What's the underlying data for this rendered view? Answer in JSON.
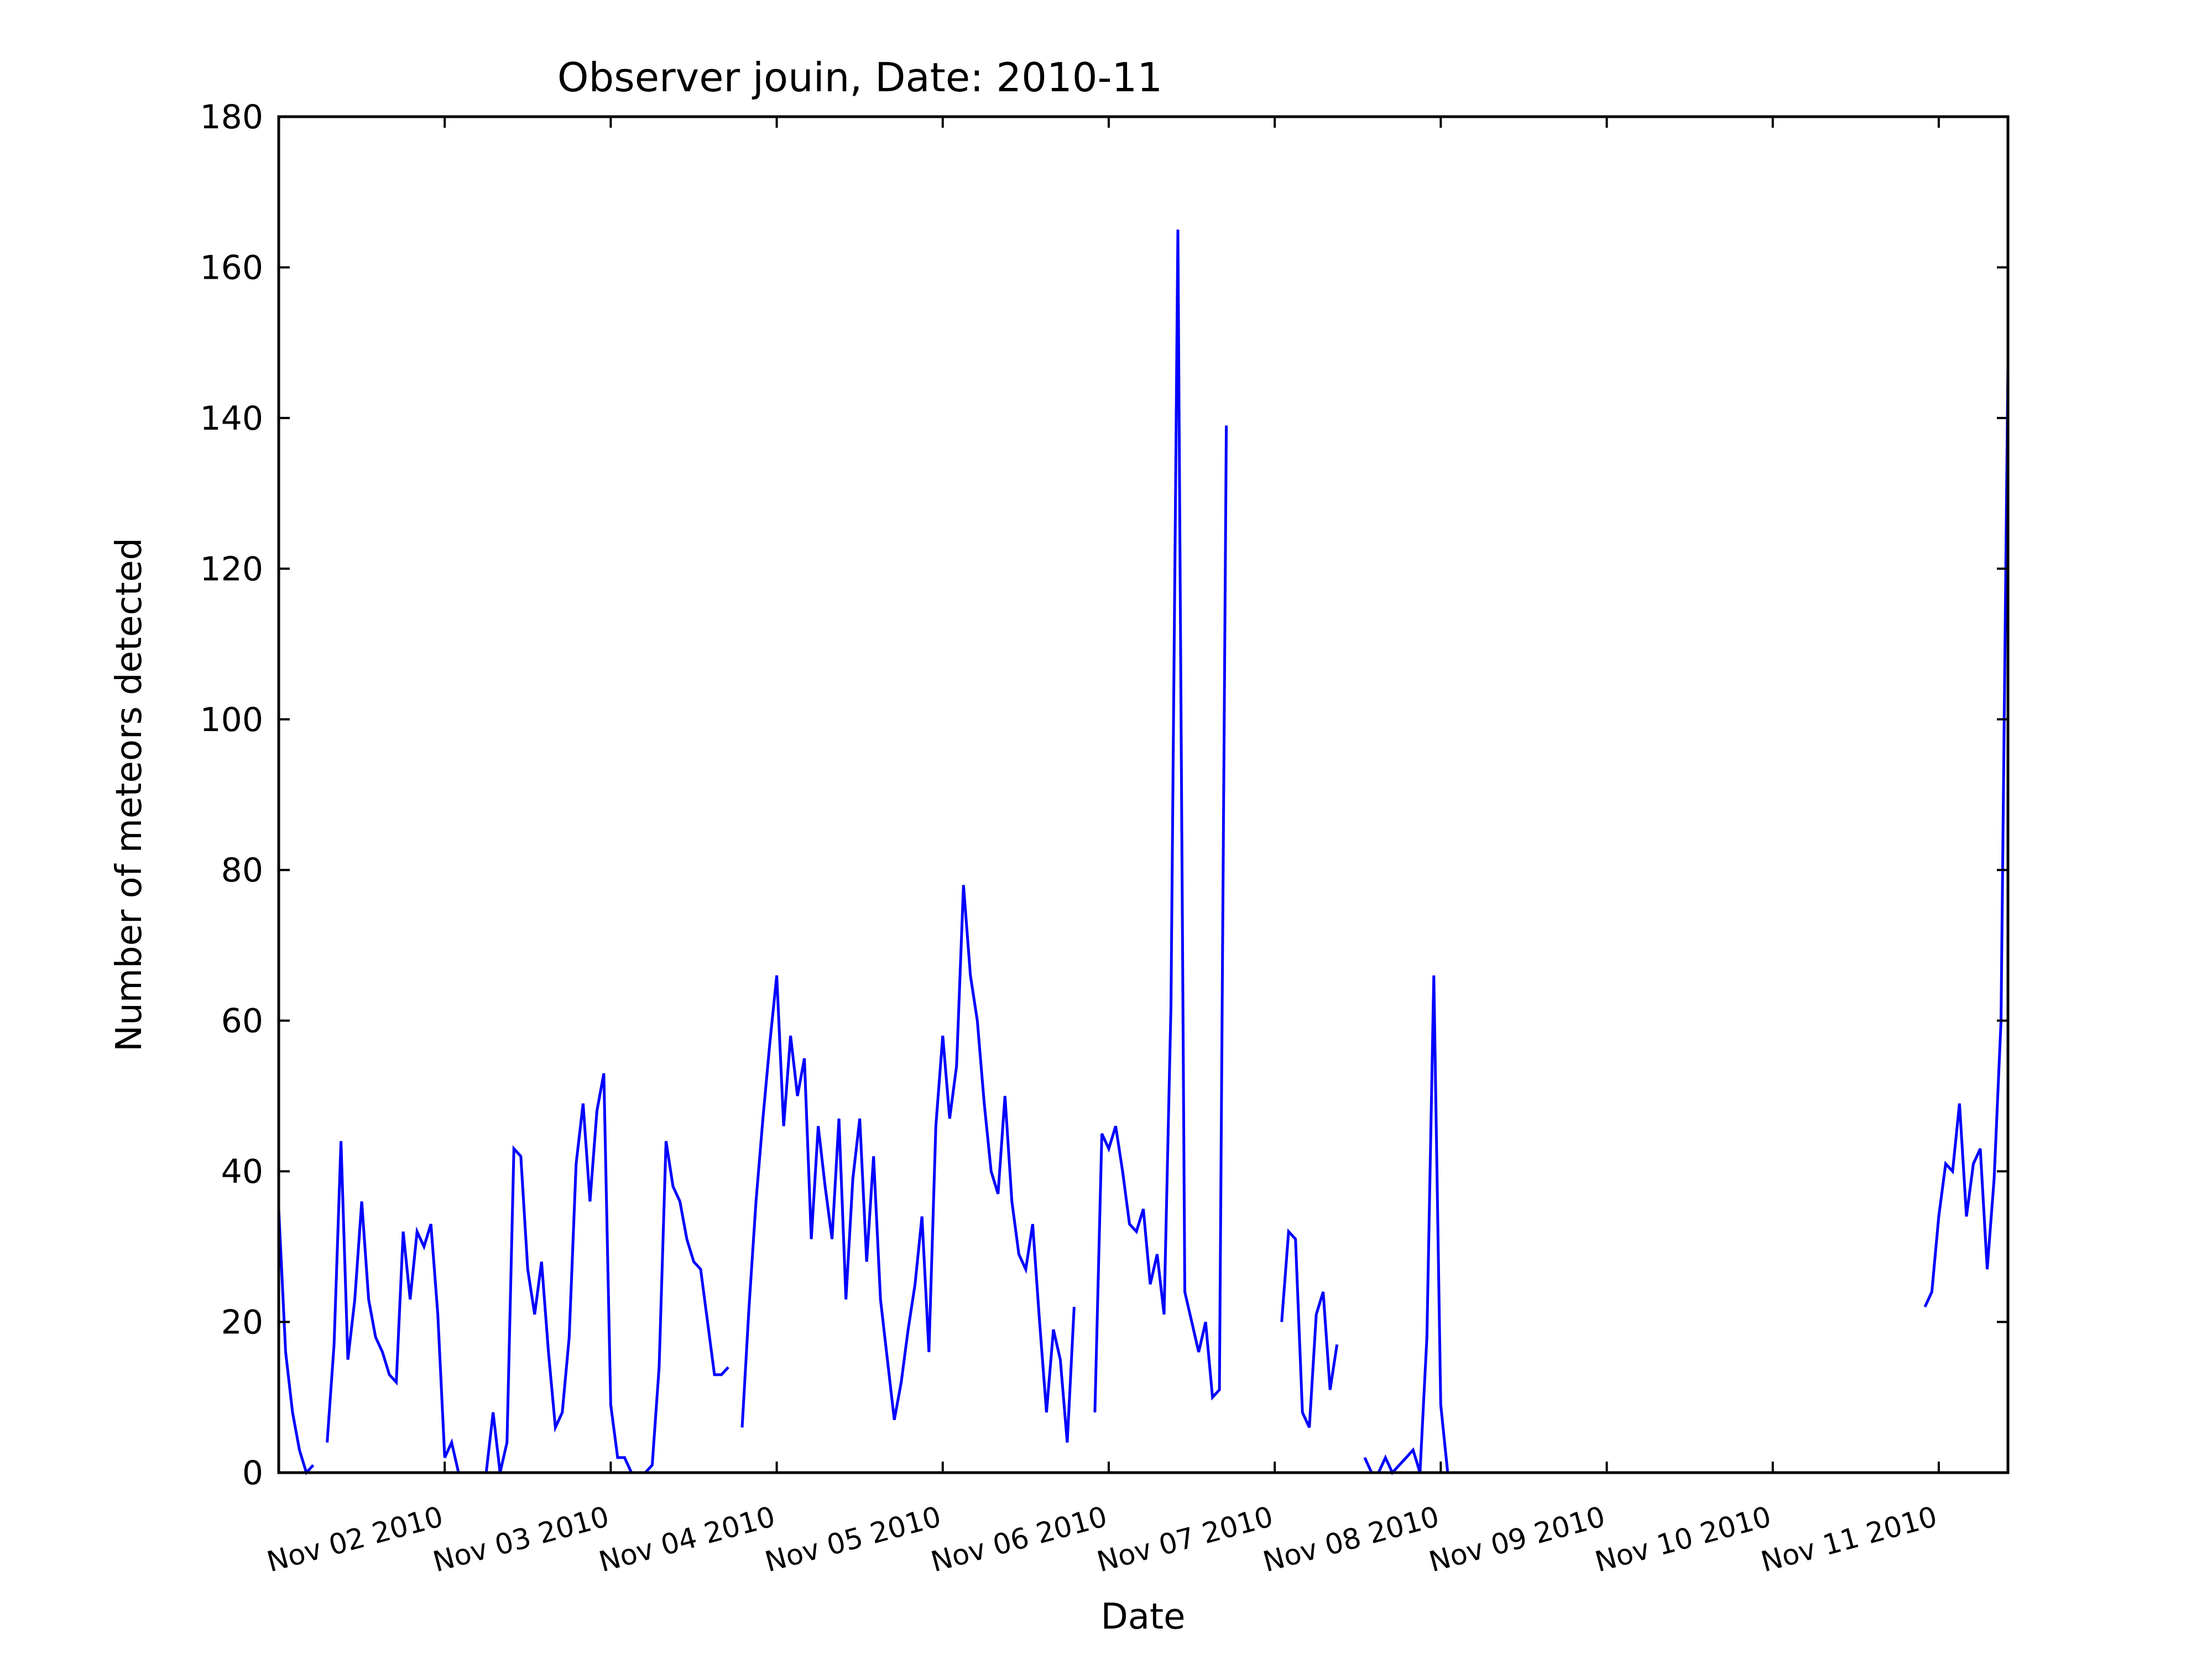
{
  "chart_data": {
    "type": "line",
    "title": "Observer jouin, Date: 2010-11",
    "xlabel": "Date",
    "ylabel": "Number of meteors detected",
    "xlim": [
      "2010-11-01 00:00",
      "2010-11-11 10:00"
    ],
    "ylim": [
      0,
      180
    ],
    "x_tick_labels": [
      "Nov 02 2010",
      "Nov 03 2010",
      "Nov 04 2010",
      "Nov 05 2010",
      "Nov 06 2010",
      "Nov 07 2010",
      "Nov 08 2010",
      "Nov 09 2010",
      "Nov 10 2010",
      "Nov 11 2010"
    ],
    "y_tick_labels": [
      "0",
      "20",
      "40",
      "60",
      "80",
      "100",
      "120",
      "140",
      "160",
      "180"
    ],
    "grid": false,
    "legend": null,
    "series": [
      {
        "color": "#0000ff",
        "segments": [
          [
            [
              "2010-11-01 00:00",
              35
            ],
            [
              "2010-11-01 01:00",
              16
            ],
            [
              "2010-11-01 02:00",
              8
            ],
            [
              "2010-11-01 03:00",
              3
            ],
            [
              "2010-11-01 04:00",
              0
            ],
            [
              "2010-11-01 05:00",
              1
            ]
          ],
          [
            [
              "2010-11-01 07:00",
              4
            ],
            [
              "2010-11-01 08:00",
              17
            ],
            [
              "2010-11-01 09:00",
              44
            ],
            [
              "2010-11-01 10:00",
              15
            ],
            [
              "2010-11-01 11:00",
              23
            ],
            [
              "2010-11-01 12:00",
              36
            ],
            [
              "2010-11-01 13:00",
              23
            ],
            [
              "2010-11-01 14:00",
              18
            ],
            [
              "2010-11-01 15:00",
              16
            ],
            [
              "2010-11-01 16:00",
              13
            ],
            [
              "2010-11-01 17:00",
              12
            ],
            [
              "2010-11-01 18:00",
              32
            ],
            [
              "2010-11-01 19:00",
              23
            ],
            [
              "2010-11-01 20:00",
              32
            ],
            [
              "2010-11-01 21:00",
              30
            ],
            [
              "2010-11-01 22:00",
              33
            ],
            [
              "2010-11-01 23:00",
              21
            ],
            [
              "2010-11-02 00:00",
              2
            ],
            [
              "2010-11-02 01:00",
              4
            ],
            [
              "2010-11-02 02:00",
              0
            ],
            [
              "2010-11-02 03:00",
              0
            ],
            [
              "2010-11-02 04:00",
              0
            ],
            [
              "2010-11-02 05:00",
              0
            ],
            [
              "2010-11-02 06:00",
              0
            ],
            [
              "2010-11-02 07:00",
              8
            ],
            [
              "2010-11-02 08:00",
              0
            ],
            [
              "2010-11-02 09:00",
              4
            ],
            [
              "2010-11-02 10:00",
              43
            ],
            [
              "2010-11-02 11:00",
              42
            ],
            [
              "2010-11-02 12:00",
              27
            ],
            [
              "2010-11-02 13:00",
              21
            ],
            [
              "2010-11-02 14:00",
              28
            ],
            [
              "2010-11-02 15:00",
              16
            ],
            [
              "2010-11-02 16:00",
              6
            ],
            [
              "2010-11-02 17:00",
              8
            ],
            [
              "2010-11-02 18:00",
              18
            ],
            [
              "2010-11-02 19:00",
              41
            ],
            [
              "2010-11-02 20:00",
              49
            ],
            [
              "2010-11-02 21:00",
              36
            ],
            [
              "2010-11-02 22:00",
              48
            ],
            [
              "2010-11-02 23:00",
              53
            ],
            [
              "2010-11-03 00:00",
              9
            ],
            [
              "2010-11-03 01:00",
              2
            ],
            [
              "2010-11-03 02:00",
              2
            ],
            [
              "2010-11-03 03:00",
              0
            ],
            [
              "2010-11-03 04:00",
              0
            ],
            [
              "2010-11-03 05:00",
              0
            ],
            [
              "2010-11-03 06:00",
              1
            ],
            [
              "2010-11-03 07:00",
              14
            ],
            [
              "2010-11-03 08:00",
              44
            ],
            [
              "2010-11-03 09:00",
              38
            ],
            [
              "2010-11-03 10:00",
              36
            ],
            [
              "2010-11-03 11:00",
              31
            ],
            [
              "2010-11-03 12:00",
              28
            ],
            [
              "2010-11-03 13:00",
              27
            ],
            [
              "2010-11-03 14:00",
              20
            ],
            [
              "2010-11-03 15:00",
              13
            ],
            [
              "2010-11-03 16:00",
              13
            ],
            [
              "2010-11-03 17:00",
              14
            ]
          ],
          [
            [
              "2010-11-03 19:00",
              6
            ],
            [
              "2010-11-03 20:00",
              22
            ],
            [
              "2010-11-03 21:00",
              36
            ],
            [
              "2010-11-03 22:00",
              47
            ],
            [
              "2010-11-03 23:00",
              57
            ],
            [
              "2010-11-04 00:00",
              66
            ],
            [
              "2010-11-04 01:00",
              46
            ],
            [
              "2010-11-04 02:00",
              58
            ],
            [
              "2010-11-04 03:00",
              50
            ],
            [
              "2010-11-04 04:00",
              55
            ],
            [
              "2010-11-04 05:00",
              31
            ],
            [
              "2010-11-04 06:00",
              46
            ],
            [
              "2010-11-04 07:00",
              38
            ],
            [
              "2010-11-04 08:00",
              31
            ],
            [
              "2010-11-04 09:00",
              47
            ],
            [
              "2010-11-04 10:00",
              23
            ],
            [
              "2010-11-04 11:00",
              39
            ],
            [
              "2010-11-04 12:00",
              47
            ],
            [
              "2010-11-04 13:00",
              28
            ],
            [
              "2010-11-04 14:00",
              42
            ],
            [
              "2010-11-04 15:00",
              23
            ],
            [
              "2010-11-04 16:00",
              15
            ],
            [
              "2010-11-04 17:00",
              7
            ],
            [
              "2010-11-04 18:00",
              12
            ],
            [
              "2010-11-04 19:00",
              19
            ],
            [
              "2010-11-04 20:00",
              25
            ],
            [
              "2010-11-04 21:00",
              34
            ],
            [
              "2010-11-04 22:00",
              16
            ],
            [
              "2010-11-04 23:00",
              46
            ],
            [
              "2010-11-05 00:00",
              58
            ],
            [
              "2010-11-05 01:00",
              47
            ],
            [
              "2010-11-05 02:00",
              54
            ],
            [
              "2010-11-05 03:00",
              78
            ],
            [
              "2010-11-05 04:00",
              66
            ],
            [
              "2010-11-05 05:00",
              60
            ],
            [
              "2010-11-05 06:00",
              49
            ],
            [
              "2010-11-05 07:00",
              40
            ],
            [
              "2010-11-05 08:00",
              37
            ],
            [
              "2010-11-05 09:00",
              50
            ],
            [
              "2010-11-05 10:00",
              36
            ],
            [
              "2010-11-05 11:00",
              29
            ],
            [
              "2010-11-05 12:00",
              27
            ],
            [
              "2010-11-05 13:00",
              33
            ],
            [
              "2010-11-05 14:00",
              20
            ],
            [
              "2010-11-05 15:00",
              8
            ],
            [
              "2010-11-05 16:00",
              19
            ],
            [
              "2010-11-05 17:00",
              15
            ],
            [
              "2010-11-05 18:00",
              4
            ],
            [
              "2010-11-05 19:00",
              22
            ]
          ],
          [
            [
              "2010-11-05 22:00",
              8
            ],
            [
              "2010-11-05 23:00",
              45
            ],
            [
              "2010-11-06 00:00",
              43
            ],
            [
              "2010-11-06 01:00",
              46
            ],
            [
              "2010-11-06 02:00",
              40
            ],
            [
              "2010-11-06 03:00",
              33
            ],
            [
              "2010-11-06 04:00",
              32
            ],
            [
              "2010-11-06 05:00",
              35
            ],
            [
              "2010-11-06 06:00",
              25
            ],
            [
              "2010-11-06 07:00",
              29
            ],
            [
              "2010-11-06 08:00",
              21
            ],
            [
              "2010-11-06 09:00",
              62
            ],
            [
              "2010-11-06 10:00",
              165
            ],
            [
              "2010-11-06 11:00",
              24
            ],
            [
              "2010-11-06 12:00",
              20
            ],
            [
              "2010-11-06 13:00",
              16
            ],
            [
              "2010-11-06 14:00",
              20
            ],
            [
              "2010-11-06 15:00",
              10
            ],
            [
              "2010-11-06 16:00",
              11
            ],
            [
              "2010-11-06 17:00",
              139
            ]
          ],
          [
            [
              "2010-11-07 01:00",
              20
            ],
            [
              "2010-11-07 02:00",
              32
            ],
            [
              "2010-11-07 03:00",
              31
            ],
            [
              "2010-11-07 04:00",
              8
            ],
            [
              "2010-11-07 05:00",
              6
            ],
            [
              "2010-11-07 06:00",
              21
            ],
            [
              "2010-11-07 07:00",
              24
            ],
            [
              "2010-11-07 08:00",
              11
            ],
            [
              "2010-11-07 09:00",
              17
            ]
          ],
          [
            [
              "2010-11-07 13:00",
              2
            ],
            [
              "2010-11-07 14:00",
              0
            ],
            [
              "2010-11-07 15:00",
              0
            ],
            [
              "2010-11-07 16:00",
              2
            ],
            [
              "2010-11-07 17:00",
              0
            ],
            [
              "2010-11-07 18:00",
              1
            ],
            [
              "2010-11-07 19:00",
              2
            ],
            [
              "2010-11-07 20:00",
              3
            ],
            [
              "2010-11-07 21:00",
              0
            ],
            [
              "2010-11-07 22:00",
              18
            ],
            [
              "2010-11-07 23:00",
              66
            ],
            [
              "2010-11-08 00:00",
              9
            ],
            [
              "2010-11-08 01:00",
              0
            ],
            [
              "2010-11-08 02:00",
              0
            ],
            [
              "2010-11-08 03:00",
              0
            ],
            [
              "2010-11-08 04:00",
              0
            ],
            [
              "2010-11-08 05:00",
              0
            ],
            [
              "2010-11-08 06:00",
              0
            ],
            [
              "2010-11-08 07:00",
              0
            ]
          ],
          [
            [
              "2010-11-10 22:00",
              22
            ],
            [
              "2010-11-10 23:00",
              24
            ],
            [
              "2010-11-11 00:00",
              34
            ],
            [
              "2010-11-11 01:00",
              41
            ],
            [
              "2010-11-11 02:00",
              40
            ],
            [
              "2010-11-11 03:00",
              49
            ],
            [
              "2010-11-11 04:00",
              34
            ],
            [
              "2010-11-11 05:00",
              41
            ],
            [
              "2010-11-11 06:00",
              43
            ],
            [
              "2010-11-11 07:00",
              27
            ],
            [
              "2010-11-11 08:00",
              39
            ],
            [
              "2010-11-11 09:00",
              60
            ],
            [
              "2010-11-11 10:00",
              147
            ]
          ]
        ]
      }
    ]
  }
}
